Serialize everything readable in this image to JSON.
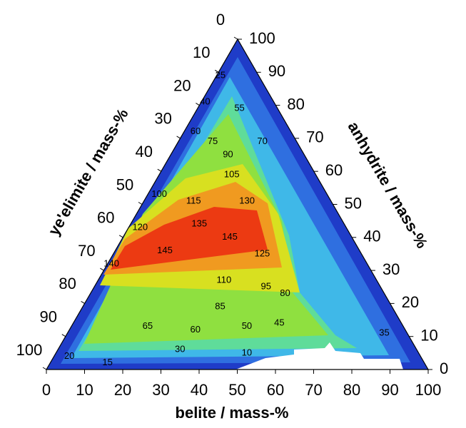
{
  "chart_data": {
    "type": "ternary-contour",
    "axes": {
      "bottom": {
        "label": "belite / mass-%",
        "ticks": [
          0,
          10,
          20,
          30,
          40,
          50,
          60,
          70,
          80,
          90,
          100
        ]
      },
      "left": {
        "label": "ye'elimite / mass-%",
        "ticks": [
          0,
          10,
          20,
          30,
          40,
          50,
          60,
          70,
          80,
          90,
          100
        ]
      },
      "right": {
        "label": "anhydrite / mass-%",
        "ticks": [
          0,
          10,
          20,
          30,
          40,
          50,
          60,
          70,
          80,
          90,
          100
        ]
      }
    },
    "contour_labels": [
      {
        "level": 25,
        "anhydrite": 89,
        "belite": 1
      },
      {
        "level": 40,
        "anhydrite": 81,
        "belite": 1
      },
      {
        "level": 55,
        "anhydrite": 79,
        "belite": 11
      },
      {
        "level": 60,
        "anhydrite": 72,
        "belite": 3
      },
      {
        "level": 75,
        "anhydrite": 69,
        "belite": 9
      },
      {
        "level": 70,
        "anhydrite": 69,
        "belite": 22
      },
      {
        "level": 90,
        "anhydrite": 65,
        "belite": 15
      },
      {
        "level": 105,
        "anhydrite": 59,
        "belite": 19
      },
      {
        "level": 100,
        "anhydrite": 53,
        "belite": 3
      },
      {
        "level": 115,
        "anhydrite": 51,
        "belite": 13
      },
      {
        "level": 130,
        "anhydrite": 51,
        "belite": 27
      },
      {
        "level": 135,
        "anhydrite": 44,
        "belite": 18
      },
      {
        "level": 120,
        "anhydrite": 43,
        "belite": 3
      },
      {
        "level": 145,
        "anhydrite": 40,
        "belite": 28
      },
      {
        "level": 145,
        "anhydrite": 36,
        "belite": 13
      },
      {
        "level": 140,
        "anhydrite": 32,
        "belite": 1
      },
      {
        "level": 125,
        "anhydrite": 35,
        "belite": 39
      },
      {
        "level": 110,
        "anhydrite": 27,
        "belite": 33
      },
      {
        "level": 95,
        "anhydrite": 25,
        "belite": 45
      },
      {
        "level": 80,
        "anhydrite": 23,
        "belite": 51
      },
      {
        "level": 85,
        "anhydrite": 19,
        "belite": 36
      },
      {
        "level": 65,
        "anhydrite": 13,
        "belite": 20
      },
      {
        "level": 60,
        "anhydrite": 12,
        "belite": 33
      },
      {
        "level": 50,
        "anhydrite": 13,
        "belite": 46
      },
      {
        "level": 45,
        "anhydrite": 14,
        "belite": 54
      },
      {
        "level": 35,
        "anhydrite": 11,
        "belite": 83
      },
      {
        "level": 30,
        "anhydrite": 6,
        "belite": 32
      },
      {
        "level": 10,
        "anhydrite": 5,
        "belite": 50
      },
      {
        "level": 20,
        "anhydrite": 4,
        "belite": 4
      },
      {
        "level": 15,
        "anhydrite": 2,
        "belite": 15
      }
    ]
  }
}
